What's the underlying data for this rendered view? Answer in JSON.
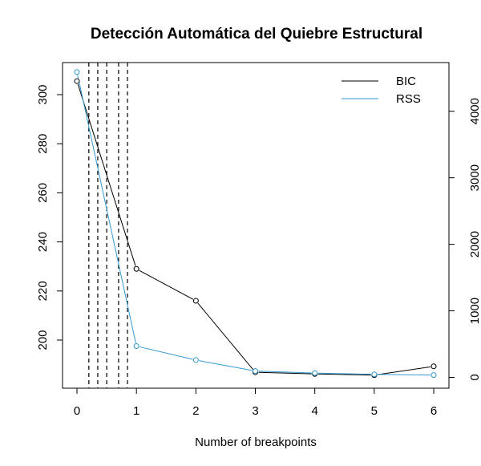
{
  "chart_data": {
    "type": "line",
    "title": "Detección Automática del Quiebre Estructural",
    "xlabel": "Number of breakpoints",
    "ylabel": "",
    "y2label": "",
    "x": [
      0,
      1,
      2,
      3,
      4,
      5,
      6
    ],
    "x_ticks": [
      "0",
      "1",
      "2",
      "3",
      "4",
      "5",
      "6"
    ],
    "xlim": [
      0,
      6
    ],
    "ylim_left": [
      186,
      308
    ],
    "yticks_left": [
      "200",
      "220",
      "240",
      "260",
      "280",
      "300"
    ],
    "ylim_right": [
      0,
      4600
    ],
    "yticks_right": [
      "0",
      "1000",
      "2000",
      "3000",
      "4000"
    ],
    "series": [
      {
        "name": "BIC",
        "axis": "left",
        "color": "#000000",
        "values": [
          305.5,
          229.0,
          216.0,
          186.9,
          186.2,
          185.7,
          189.3
        ]
      },
      {
        "name": "RSS",
        "axis": "right",
        "color": "#3399cc",
        "values": [
          4590,
          470,
          260,
          95,
          65,
          45,
          35
        ]
      }
    ],
    "vlines_dashed": [
      0.2,
      0.35,
      0.5,
      0.7,
      0.85
    ],
    "legend": {
      "position": "top-right"
    },
    "grid": false
  }
}
